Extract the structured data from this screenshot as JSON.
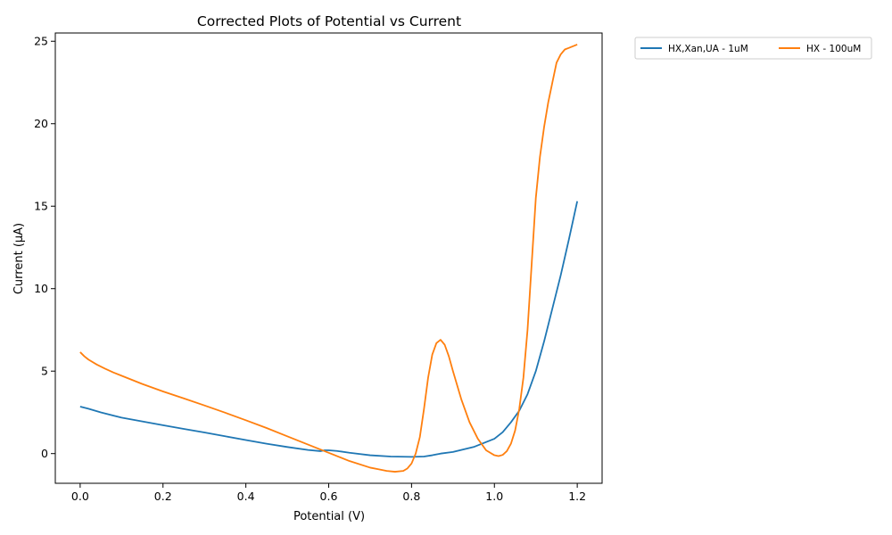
{
  "chart_data": {
    "type": "line",
    "title": "Corrected Plots of Potential vs Current",
    "xlabel": "Potential (V)",
    "ylabel": "Current (µA)",
    "xlim": [
      -0.06,
      1.26
    ],
    "ylim": [
      -1.8,
      25.5
    ],
    "xticks": [
      0.0,
      0.2,
      0.4,
      0.6,
      0.8,
      1.0,
      1.2
    ],
    "xtick_labels": [
      "0.0",
      "0.2",
      "0.4",
      "0.6",
      "0.8",
      "1.0",
      "1.2"
    ],
    "yticks": [
      0,
      5,
      10,
      15,
      20,
      25
    ],
    "ytick_labels": [
      "0",
      "5",
      "10",
      "15",
      "20",
      "25"
    ],
    "grid": false,
    "legend_position": "outside-top-right",
    "series": [
      {
        "name": "HX,Xan,UA - 1uM",
        "color": "#1f77b4",
        "x": [
          0.0,
          0.02,
          0.05,
          0.1,
          0.15,
          0.2,
          0.25,
          0.3,
          0.35,
          0.4,
          0.45,
          0.5,
          0.55,
          0.58,
          0.59,
          0.6,
          0.62,
          0.65,
          0.7,
          0.75,
          0.8,
          0.83,
          0.85,
          0.87,
          0.9,
          0.95,
          1.0,
          1.02,
          1.04,
          1.06,
          1.08,
          1.1,
          1.12,
          1.14,
          1.16,
          1.18,
          1.2
        ],
        "y": [
          2.85,
          2.72,
          2.5,
          2.18,
          1.95,
          1.72,
          1.5,
          1.28,
          1.05,
          0.82,
          0.6,
          0.4,
          0.22,
          0.15,
          0.2,
          0.2,
          0.16,
          0.05,
          -0.1,
          -0.18,
          -0.2,
          -0.18,
          -0.1,
          0.0,
          0.1,
          0.4,
          0.9,
          1.3,
          1.9,
          2.6,
          3.6,
          5.0,
          6.8,
          8.8,
          10.8,
          13.0,
          15.3
        ]
      },
      {
        "name": "HX - 100uM",
        "color": "#ff7f0e",
        "x": [
          0.0,
          0.01,
          0.02,
          0.04,
          0.06,
          0.08,
          0.1,
          0.15,
          0.2,
          0.25,
          0.3,
          0.35,
          0.4,
          0.45,
          0.5,
          0.55,
          0.6,
          0.65,
          0.7,
          0.72,
          0.74,
          0.76,
          0.78,
          0.79,
          0.8,
          0.81,
          0.82,
          0.83,
          0.84,
          0.85,
          0.86,
          0.87,
          0.88,
          0.89,
          0.9,
          0.92,
          0.94,
          0.96,
          0.98,
          1.0,
          1.01,
          1.02,
          1.03,
          1.04,
          1.05,
          1.06,
          1.07,
          1.08,
          1.09,
          1.1,
          1.11,
          1.12,
          1.13,
          1.14,
          1.15,
          1.16,
          1.17,
          1.18,
          1.19,
          1.2
        ],
        "y": [
          6.15,
          5.9,
          5.7,
          5.4,
          5.15,
          4.92,
          4.72,
          4.22,
          3.77,
          3.35,
          2.92,
          2.48,
          2.02,
          1.55,
          1.05,
          0.55,
          0.05,
          -0.45,
          -0.85,
          -0.95,
          -1.05,
          -1.1,
          -1.05,
          -0.9,
          -0.6,
          0.0,
          1.0,
          2.7,
          4.6,
          6.0,
          6.7,
          6.9,
          6.6,
          5.9,
          5.0,
          3.3,
          1.9,
          0.9,
          0.2,
          -0.1,
          -0.15,
          -0.08,
          0.15,
          0.6,
          1.4,
          2.7,
          4.6,
          7.5,
          11.5,
          15.5,
          18.0,
          19.8,
          21.3,
          22.5,
          23.7,
          24.2,
          24.5,
          24.6,
          24.7,
          24.8
        ]
      }
    ]
  }
}
